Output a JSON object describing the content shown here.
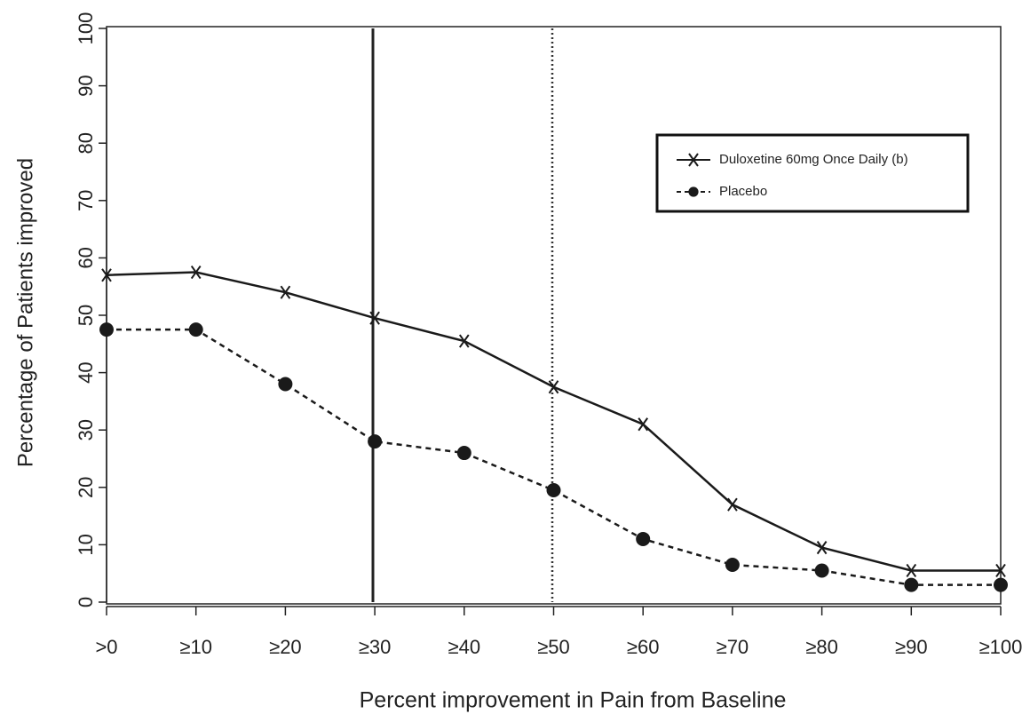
{
  "chart_data": {
    "type": "line",
    "xlabel": "Percent improvement in Pain from Baseline",
    "ylabel": "Percentage of Patients improved",
    "categories": [
      ">0",
      "≥10",
      "≥20",
      "≥30",
      "≥40",
      "≥50",
      "≥60",
      "≥70",
      "≥80",
      "≥90",
      "≥100"
    ],
    "series": [
      {
        "name": "Duloxetine 60mg Once Daily (b)",
        "color": "#1a1a1a",
        "marker": "x",
        "dash": "solid",
        "values": [
          57,
          57.5,
          54,
          49.5,
          45.5,
          37.5,
          31,
          17,
          9.5,
          5.5,
          5.5
        ]
      },
      {
        "name": "Placebo",
        "color": "#1a1a1a",
        "marker": "circle",
        "dash": "dashed",
        "values": [
          47.5,
          47.5,
          38,
          28,
          26,
          19.5,
          11,
          6.5,
          5.5,
          3,
          3
        ]
      }
    ],
    "ylim": [
      0,
      100
    ],
    "yticks": [
      0,
      10,
      20,
      30,
      40,
      50,
      60,
      70,
      80,
      90,
      100
    ],
    "grid": false,
    "legend": "upper right"
  }
}
